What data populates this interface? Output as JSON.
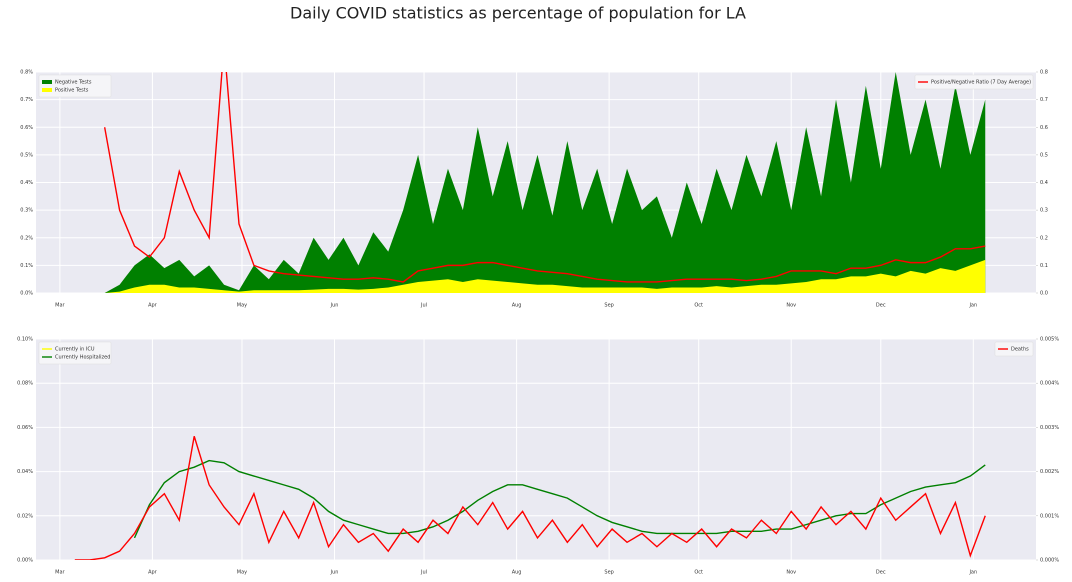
{
  "title": "Daily COVID statistics as percentage of population for LA",
  "chart_data": [
    {
      "type": "line",
      "x": [
        0,
        5,
        10,
        15,
        20,
        25,
        30,
        35,
        40,
        45,
        50,
        55,
        60,
        65,
        70,
        75,
        80,
        85,
        90,
        95,
        100,
        105,
        110,
        115,
        120,
        125,
        130,
        135,
        140,
        145,
        150,
        155,
        160,
        165,
        170,
        175,
        180,
        185,
        190,
        195,
        200,
        205,
        210,
        215,
        220,
        225,
        230,
        235,
        240,
        245,
        250,
        255,
        260,
        265,
        270,
        275,
        280,
        285,
        290,
        295,
        300,
        305,
        310
      ],
      "xlim": [
        -8,
        327
      ],
      "xticks": [
        {
          "value": 0,
          "label": "Mar"
        },
        {
          "value": 31,
          "label": "Apr"
        },
        {
          "value": 61,
          "label": "May"
        },
        {
          "value": 92,
          "label": "Jun"
        },
        {
          "value": 122,
          "label": "Jul"
        },
        {
          "value": 153,
          "label": "Aug"
        },
        {
          "value": 184,
          "label": "Sep"
        },
        {
          "value": 214,
          "label": "Oct"
        },
        {
          "value": 245,
          "label": "Nov"
        },
        {
          "value": 275,
          "label": "Dec"
        },
        {
          "value": 306,
          "label": "Jan"
        }
      ],
      "ylim": [
        0,
        0.8
      ],
      "yticks": [
        {
          "value": 0,
          "label": "0.0%"
        },
        {
          "value": 0.1,
          "label": "0.1%"
        },
        {
          "value": 0.2,
          "label": "0.2%"
        },
        {
          "value": 0.3,
          "label": "0.3%"
        },
        {
          "value": 0.4,
          "label": "0.4%"
        },
        {
          "value": 0.5,
          "label": "0.5%"
        },
        {
          "value": 0.6,
          "label": "0.6%"
        },
        {
          "value": 0.7,
          "label": "0.7%"
        },
        {
          "value": 0.8,
          "label": "0.8%"
        }
      ],
      "y2lim": [
        0,
        0.8
      ],
      "y2ticks": [
        {
          "value": 0,
          "label": "0.0"
        },
        {
          "value": 0.1,
          "label": "0.1"
        },
        {
          "value": 0.2,
          "label": "0.2"
        },
        {
          "value": 0.3,
          "label": "0.3"
        },
        {
          "value": 0.4,
          "label": "0.4"
        },
        {
          "value": 0.5,
          "label": "0.5"
        },
        {
          "value": 0.6,
          "label": "0.6"
        },
        {
          "value": 0.7,
          "label": "0.7"
        },
        {
          "value": 0.8,
          "label": "0.8"
        }
      ],
      "grid": true,
      "legend": "upper left",
      "legend2": "upper right",
      "series": [
        {
          "name": "Negative Tests",
          "color": "#008000",
          "type": "area",
          "values": [
            0,
            0,
            0,
            0,
            0.03,
            0.1,
            0.14,
            0.09,
            0.12,
            0.06,
            0.1,
            0.03,
            0.01,
            0.1,
            0.05,
            0.12,
            0.07,
            0.2,
            0.12,
            0.2,
            0.1,
            0.22,
            0.15,
            0.3,
            0.5,
            0.25,
            0.45,
            0.3,
            0.6,
            0.35,
            0.55,
            0.3,
            0.5,
            0.28,
            0.55,
            0.3,
            0.45,
            0.25,
            0.45,
            0.3,
            0.35,
            0.2,
            0.4,
            0.25,
            0.45,
            0.3,
            0.5,
            0.35,
            0.55,
            0.3,
            0.6,
            0.35,
            0.7,
            0.4,
            0.75,
            0.45,
            0.8,
            0.5,
            0.7,
            0.45,
            0.75,
            0.5,
            0.7
          ]
        },
        {
          "name": "Positive Tests",
          "color": "#ffff00",
          "type": "area",
          "values": [
            0,
            0,
            0,
            0,
            0.005,
            0.02,
            0.03,
            0.03,
            0.02,
            0.02,
            0.015,
            0.01,
            0.005,
            0.01,
            0.01,
            0.01,
            0.01,
            0.012,
            0.015,
            0.015,
            0.012,
            0.015,
            0.02,
            0.03,
            0.04,
            0.045,
            0.05,
            0.04,
            0.05,
            0.045,
            0.04,
            0.035,
            0.03,
            0.03,
            0.025,
            0.02,
            0.02,
            0.02,
            0.02,
            0.02,
            0.015,
            0.02,
            0.02,
            0.02,
            0.025,
            0.02,
            0.025,
            0.03,
            0.03,
            0.035,
            0.04,
            0.05,
            0.05,
            0.06,
            0.06,
            0.07,
            0.06,
            0.08,
            0.07,
            0.09,
            0.08,
            0.1,
            0.12
          ]
        },
        {
          "name": "Positive/Negative Ratio (7 Day Average)",
          "color": "#ff0000",
          "type": "line",
          "axis": "y2",
          "values": [
            null,
            null,
            null,
            0.6,
            0.3,
            0.17,
            0.13,
            0.2,
            0.44,
            0.3,
            0.2,
            0.9,
            0.25,
            0.1,
            0.08,
            0.07,
            0.065,
            0.06,
            0.055,
            0.05,
            0.05,
            0.055,
            0.05,
            0.04,
            0.08,
            0.09,
            0.1,
            0.1,
            0.11,
            0.11,
            0.1,
            0.09,
            0.08,
            0.075,
            0.07,
            0.06,
            0.05,
            0.045,
            0.04,
            0.04,
            0.04,
            0.045,
            0.05,
            0.05,
            0.05,
            0.05,
            0.045,
            0.05,
            0.06,
            0.08,
            0.08,
            0.08,
            0.07,
            0.09,
            0.09,
            0.1,
            0.12,
            0.11,
            0.11,
            0.13,
            0.16,
            0.16,
            0.17
          ]
        }
      ]
    },
    {
      "type": "line",
      "x": [
        0,
        5,
        10,
        15,
        20,
        25,
        30,
        35,
        40,
        45,
        50,
        55,
        60,
        65,
        70,
        75,
        80,
        85,
        90,
        95,
        100,
        105,
        110,
        115,
        120,
        125,
        130,
        135,
        140,
        145,
        150,
        155,
        160,
        165,
        170,
        175,
        180,
        185,
        190,
        195,
        200,
        205,
        210,
        215,
        220,
        225,
        230,
        235,
        240,
        245,
        250,
        255,
        260,
        265,
        270,
        275,
        280,
        285,
        290,
        295,
        300,
        305,
        310
      ],
      "xlim": [
        -8,
        327
      ],
      "xticks": [
        {
          "value": 0,
          "label": "Mar"
        },
        {
          "value": 31,
          "label": "Apr"
        },
        {
          "value": 61,
          "label": "May"
        },
        {
          "value": 92,
          "label": "Jun"
        },
        {
          "value": 122,
          "label": "Jul"
        },
        {
          "value": 153,
          "label": "Aug"
        },
        {
          "value": 184,
          "label": "Sep"
        },
        {
          "value": 214,
          "label": "Oct"
        },
        {
          "value": 245,
          "label": "Nov"
        },
        {
          "value": 275,
          "label": "Dec"
        },
        {
          "value": 306,
          "label": "Jan"
        }
      ],
      "ylim": [
        0,
        0.1
      ],
      "yticks": [
        {
          "value": 0,
          "label": "0.00%"
        },
        {
          "value": 0.02,
          "label": "0.02%"
        },
        {
          "value": 0.04,
          "label": "0.04%"
        },
        {
          "value": 0.06,
          "label": "0.06%"
        },
        {
          "value": 0.08,
          "label": "0.08%"
        },
        {
          "value": 0.1,
          "label": "0.10%"
        }
      ],
      "y2lim": [
        0,
        0.005
      ],
      "y2ticks": [
        {
          "value": 0,
          "label": "0.000%"
        },
        {
          "value": 0.001,
          "label": "0.001%"
        },
        {
          "value": 0.002,
          "label": "0.002%"
        },
        {
          "value": 0.003,
          "label": "0.003%"
        },
        {
          "value": 0.004,
          "label": "0.004%"
        },
        {
          "value": 0.005,
          "label": "0.005%"
        }
      ],
      "grid": true,
      "legend": "upper left",
      "legend2": "upper right",
      "series": [
        {
          "name": "Currently in ICU",
          "color": "#ffff00",
          "type": "line",
          "values": [
            null,
            null,
            null,
            null,
            null,
            null,
            null,
            null,
            null,
            null,
            null,
            null,
            null,
            null,
            null,
            null,
            null,
            null,
            null,
            null,
            null,
            null,
            null,
            null,
            null,
            null,
            null,
            null,
            null,
            null,
            null,
            null,
            null,
            null,
            null,
            null,
            null,
            null,
            null,
            null,
            null,
            null,
            null,
            null,
            null,
            null,
            null,
            null,
            null,
            null,
            null,
            null,
            null,
            null,
            null,
            null,
            null,
            null,
            null,
            null,
            null,
            null,
            null
          ]
        },
        {
          "name": "Currently Hospitalized",
          "color": "#008000",
          "type": "line",
          "values": [
            null,
            null,
            null,
            null,
            null,
            0.01,
            0.025,
            0.035,
            0.04,
            0.042,
            0.045,
            0.044,
            0.04,
            0.038,
            0.036,
            0.034,
            0.032,
            0.028,
            0.022,
            0.018,
            0.016,
            0.014,
            0.012,
            0.012,
            0.013,
            0.015,
            0.018,
            0.022,
            0.027,
            0.031,
            0.034,
            0.034,
            0.032,
            0.03,
            0.028,
            0.024,
            0.02,
            0.017,
            0.015,
            0.013,
            0.012,
            0.012,
            0.012,
            0.012,
            0.012,
            0.013,
            0.013,
            0.013,
            0.014,
            0.014,
            0.016,
            0.018,
            0.02,
            0.021,
            0.021,
            0.025,
            0.028,
            0.031,
            0.033,
            0.034,
            0.035,
            0.038,
            0.043
          ]
        },
        {
          "name": "Deaths",
          "color": "#ff0000",
          "type": "line",
          "axis": "y2",
          "values": [
            null,
            0,
            0,
            5e-05,
            0.0002,
            0.0006,
            0.0012,
            0.0015,
            0.0009,
            0.0028,
            0.0017,
            0.0012,
            0.0008,
            0.0015,
            0.0004,
            0.0011,
            0.0005,
            0.0013,
            0.0003,
            0.0008,
            0.0004,
            0.0006,
            0.0002,
            0.0007,
            0.0004,
            0.0009,
            0.0006,
            0.0012,
            0.0008,
            0.0013,
            0.0007,
            0.0011,
            0.0005,
            0.0009,
            0.0004,
            0.0008,
            0.0003,
            0.0007,
            0.0004,
            0.0006,
            0.0003,
            0.0006,
            0.0004,
            0.0007,
            0.0003,
            0.0007,
            0.0005,
            0.0009,
            0.0006,
            0.0011,
            0.0007,
            0.0012,
            0.0008,
            0.0011,
            0.0007,
            0.0014,
            0.0009,
            0.0012,
            0.0015,
            0.0006,
            0.0013,
            0.0001,
            0.001
          ]
        }
      ]
    }
  ]
}
